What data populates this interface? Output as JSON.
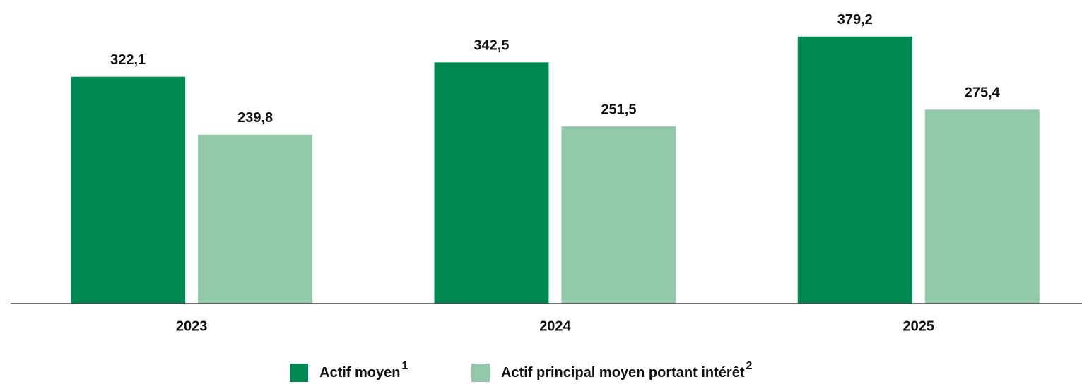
{
  "chart_data": {
    "type": "bar",
    "categories": [
      "2023",
      "2024",
      "2025"
    ],
    "series": [
      {
        "name": "Actif moyen",
        "note": "1",
        "color": "#008853",
        "values": [
          322.1,
          342.5,
          379.2
        ],
        "value_labels": [
          "322,1",
          "342,5",
          "379,2"
        ]
      },
      {
        "name": "Actif principal moyen portant intérêt",
        "note": "2",
        "color": "#91c9a9",
        "values": [
          239.8,
          251.5,
          275.4
        ],
        "value_labels": [
          "239,8",
          "251,5",
          "275,4"
        ]
      }
    ],
    "ylim": [
      0,
      400
    ]
  }
}
